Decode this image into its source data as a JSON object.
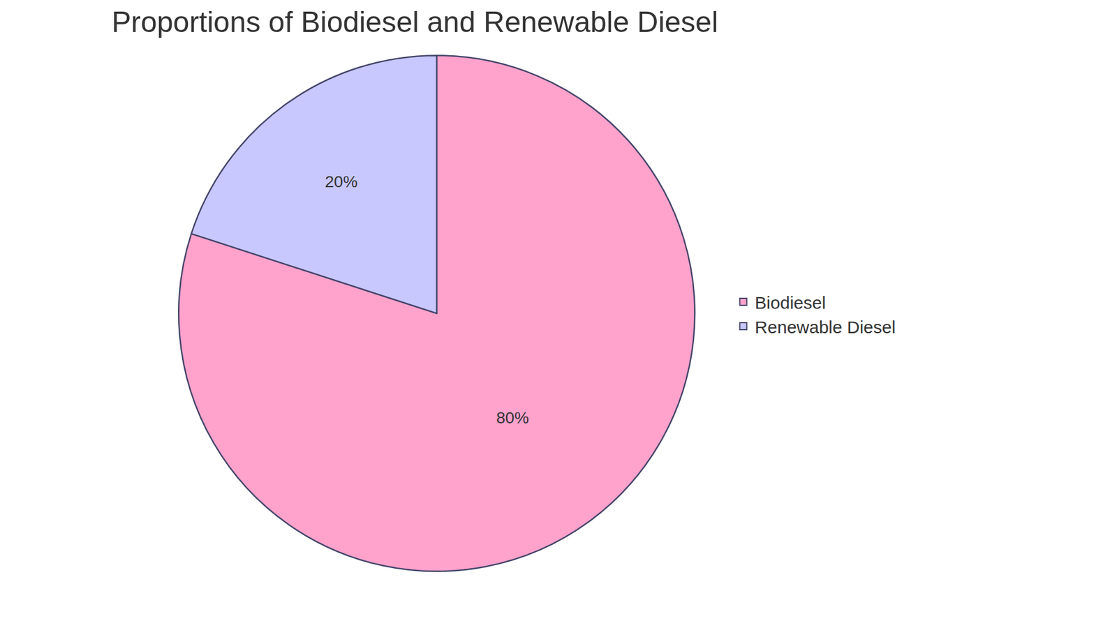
{
  "chart_data": {
    "type": "pie",
    "title": "Proportions of Biodiesel and Renewable Diesel",
    "categories": [
      "Biodiesel",
      "Renewable Diesel"
    ],
    "values": [
      80,
      20
    ],
    "value_labels": [
      "80%",
      "20%"
    ],
    "colors": [
      "#ffa2cc",
      "#c8c8ff"
    ],
    "data_labels": true,
    "legend": "right"
  }
}
